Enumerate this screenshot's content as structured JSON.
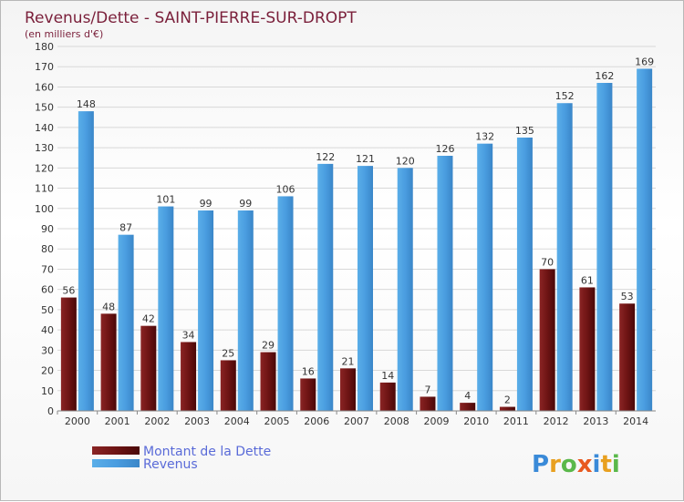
{
  "chart_data": {
    "type": "bar",
    "title": "Revenus/Dette - SAINT-PIERRE-SUR-DROPT",
    "subtitle": "(en milliers d'€)",
    "categories": [
      "2000",
      "2001",
      "2002",
      "2003",
      "2004",
      "2005",
      "2006",
      "2007",
      "2008",
      "2009",
      "2010",
      "2011",
      "2012",
      "2013",
      "2014"
    ],
    "series": [
      {
        "name": "Montant de la Dette",
        "color": "#7a1a1a",
        "values": [
          56,
          48,
          42,
          34,
          25,
          29,
          16,
          21,
          14,
          7,
          4,
          2,
          70,
          61,
          53
        ]
      },
      {
        "name": "Revenus",
        "color": "#4a9de0",
        "values": [
          148,
          87,
          101,
          99,
          99,
          106,
          122,
          121,
          120,
          126,
          132,
          135,
          152,
          162,
          169
        ]
      }
    ],
    "ylim": [
      0,
      180
    ],
    "ytick_step": 10,
    "grid": true,
    "legend_position": "bottom-left"
  },
  "logo": {
    "text": "Proxiti"
  }
}
